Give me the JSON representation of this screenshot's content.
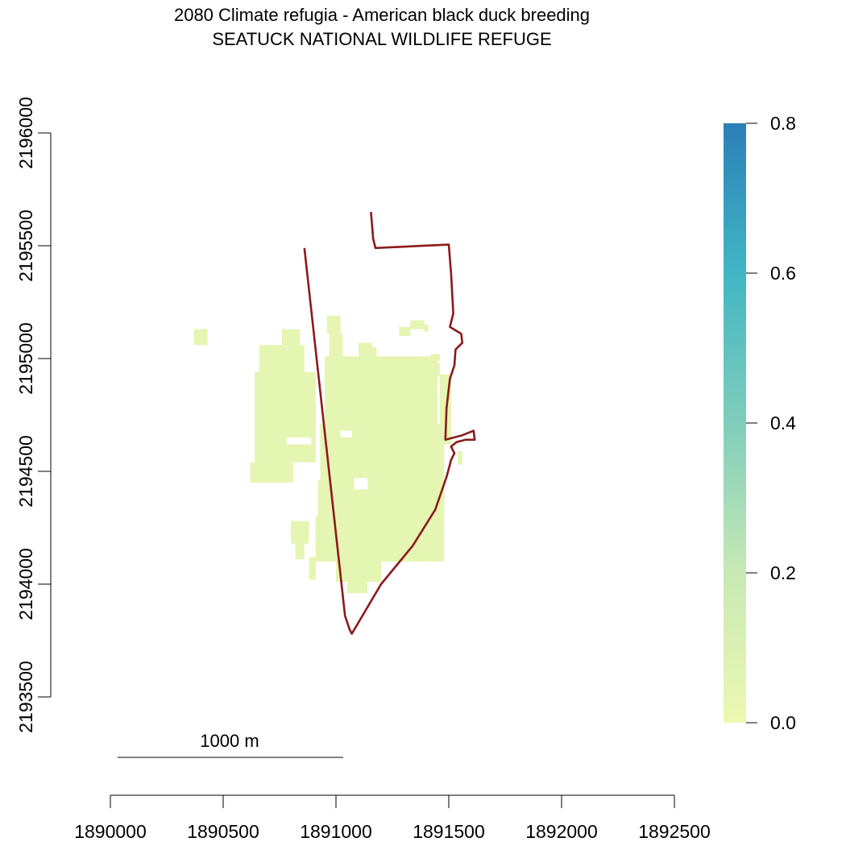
{
  "title": {
    "line1": "2080 Climate refugia - American black duck breeding",
    "line2": "SEATUCK NATIONAL WILDLIFE REFUGE"
  },
  "scale_bar": {
    "label": "1000 m"
  },
  "legend": {
    "title": "",
    "min": 0.0,
    "max": 0.8,
    "ticks": [
      "0.0",
      "0.2",
      "0.4",
      "0.6",
      "0.8"
    ],
    "colors": [
      "#EDF8B1",
      "#C7E9B4",
      "#7FCDBB",
      "#41B6C4",
      "#2C7FB8"
    ]
  },
  "chart_data": {
    "type": "heatmap",
    "title": "2080 Climate refugia - American black duck breeding\nSEATUCK NATIONAL WILDLIFE REFUGE",
    "xlabel": "",
    "ylabel": "",
    "xlim": [
      1890000,
      1892500
    ],
    "ylim": [
      2193500,
      2196000
    ],
    "x_ticks": [
      "1890000",
      "1890500",
      "1891000",
      "1891500",
      "1892000",
      "1892500"
    ],
    "y_ticks": [
      "2193500",
      "2194000",
      "2194500",
      "2195000",
      "2195500",
      "2196000"
    ],
    "grid": false,
    "value_range": [
      0.0,
      0.8
    ],
    "raster_value_estimate": 0.04,
    "boundary_color": "#8B1A1A",
    "boundary": [
      [
        1891155,
        2195650
      ],
      [
        1891165,
        2195530
      ],
      [
        1891175,
        2195490
      ],
      [
        1891500,
        2195505
      ],
      [
        1891510,
        2195380
      ],
      [
        1891520,
        2195200
      ],
      [
        1891505,
        2195140
      ],
      [
        1891555,
        2195110
      ],
      [
        1891560,
        2195070
      ],
      [
        1891530,
        2195040
      ],
      [
        1891525,
        2194970
      ],
      [
        1891505,
        2194910
      ],
      [
        1891490,
        2194780
      ],
      [
        1891485,
        2194640
      ],
      [
        1891560,
        2194660
      ],
      [
        1891610,
        2194680
      ],
      [
        1891615,
        2194640
      ],
      [
        1891575,
        2194640
      ],
      [
        1891535,
        2194630
      ],
      [
        1891510,
        2194610
      ],
      [
        1891525,
        2194580
      ],
      [
        1891510,
        2194550
      ],
      [
        1891505,
        2194530
      ],
      [
        1891490,
        2194475
      ],
      [
        1891440,
        2194330
      ],
      [
        1891340,
        2194170
      ],
      [
        1891200,
        2194000
      ],
      [
        1891070,
        2193780
      ],
      [
        1891060,
        2193800
      ],
      [
        1891040,
        2193860
      ],
      [
        1890860,
        2195490
      ]
    ],
    "raster_cells": [
      [
        1890370,
        2195060,
        60,
        70
      ],
      [
        1890620,
        2194450,
        190,
        90
      ],
      [
        1890640,
        2194540,
        270,
        400
      ],
      [
        1890660,
        2194940,
        200,
        120
      ],
      [
        1890760,
        2195060,
        80,
        70
      ],
      [
        1890800,
        2194180,
        80,
        100
      ],
      [
        1890820,
        2194110,
        40,
        70
      ],
      [
        1890880,
        2194020,
        30,
        100
      ],
      [
        1890910,
        2194100,
        570,
        200
      ],
      [
        1890920,
        2194300,
        560,
        160
      ],
      [
        1890930,
        2194460,
        550,
        250
      ],
      [
        1890950,
        2194710,
        500,
        300
      ],
      [
        1890970,
        2195010,
        60,
        100
      ],
      [
        1890960,
        2195110,
        60,
        80
      ],
      [
        1891000,
        2194010,
        200,
        90
      ],
      [
        1891050,
        2193960,
        90,
        50
      ],
      [
        1891100,
        2195010,
        60,
        60
      ],
      [
        1891150,
        2195010,
        30,
        40
      ],
      [
        1891280,
        2195100,
        50,
        40
      ],
      [
        1891330,
        2195130,
        60,
        40
      ],
      [
        1891390,
        2195120,
        20,
        30
      ],
      [
        1891350,
        2194950,
        40,
        30
      ],
      [
        1891420,
        2194990,
        40,
        30
      ],
      [
        1891430,
        2194920,
        30,
        60
      ],
      [
        1891460,
        2194620,
        50,
        310
      ],
      [
        1891540,
        2194530,
        20,
        60
      ]
    ],
    "raster_holes": [
      [
        1891080,
        2194420,
        60,
        50
      ],
      [
        1890780,
        2194620,
        110,
        30
      ],
      [
        1891020,
        2194650,
        50,
        30
      ]
    ]
  }
}
